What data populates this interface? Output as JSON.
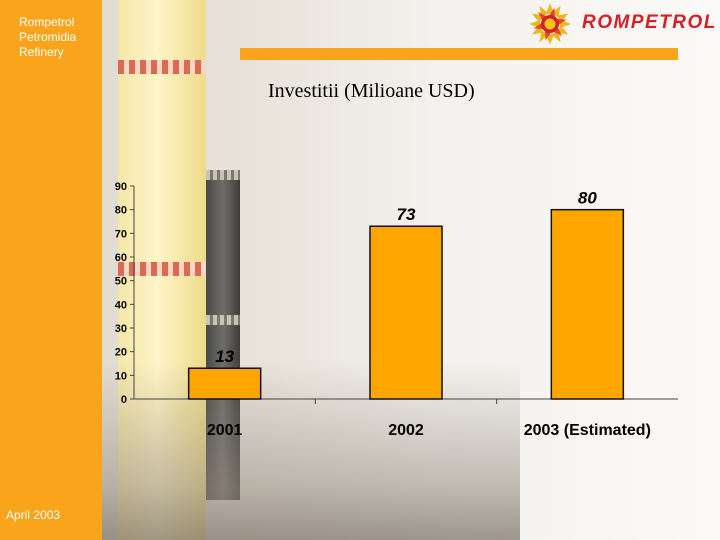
{
  "sidebar": {
    "company_lines": [
      "Rompetrol",
      "Petromidia",
      "Refinery"
    ],
    "date": "April 2003"
  },
  "logo": {
    "text": "ROMPETROL"
  },
  "slide": {
    "title": "Investitii (Milioane USD)"
  },
  "colors": {
    "accent": "#f9a41b",
    "bar": "#ffa500",
    "bar_stroke": "#111111",
    "logo_red": "#d91f26"
  },
  "chart_data": {
    "type": "bar",
    "title": "",
    "xlabel": "",
    "ylabel": "",
    "categories": [
      "2001",
      "2002",
      "2003 (Estimated)"
    ],
    "values": [
      13,
      73,
      80
    ],
    "data_labels": [
      "13",
      "73",
      "80"
    ],
    "yticks": [
      0,
      10,
      20,
      30,
      40,
      50,
      60,
      70,
      80,
      90
    ],
    "ylim": [
      0,
      90
    ],
    "grid": false,
    "legend": "none"
  }
}
